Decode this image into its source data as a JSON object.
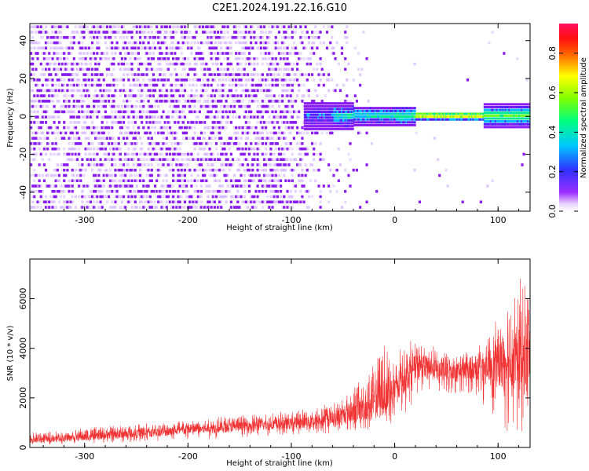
{
  "title": "C2E1.2024.191.22.16.G10",
  "colors": {
    "snr_trace": "#f03232",
    "spectrum_low": "#8a1cf0",
    "spectrum_ridge": "#ff2020"
  },
  "chart_data": [
    {
      "type": "heatmap",
      "xlabel": "Height of straight line (km)",
      "ylabel": "Frequency (Hz)",
      "xlim": [
        -353,
        131
      ],
      "ylim": [
        -50,
        49
      ],
      "xticks": [
        -300,
        -200,
        -100,
        0,
        100
      ],
      "yticks": [
        -40,
        -20,
        0,
        20,
        40
      ],
      "colorbar": {
        "label": "Normalized spectral amplitude",
        "range": [
          0,
          0.95
        ],
        "ticks": [
          "0.0",
          "0.2",
          "0.4",
          "0.6",
          "0.8"
        ],
        "colormap": "rainbow (purple → blue → cyan → green → yellow → red → magenta)"
      },
      "description_values": {
        "noise_region_x": [
          -353,
          -50
        ],
        "signal_ridge_frequency": 0,
        "signal_region_x": [
          -85,
          131
        ],
        "peak_amplitude_region_x": [
          20,
          110
        ]
      },
      "grid": false
    },
    {
      "type": "line",
      "xlabel": "Height of straight line (km)",
      "ylabel": "SNR (10 * v/v)",
      "xlim": [
        -353,
        131
      ],
      "ylim": [
        0,
        7600
      ],
      "xticks": [
        -300,
        -200,
        -100,
        0,
        100
      ],
      "yticks": [
        0,
        2000,
        4000,
        6000
      ],
      "series": [
        {
          "x": [
            -350,
            -325,
            -300,
            -275,
            -250,
            -225,
            -200,
            -175,
            -150,
            -125,
            -100,
            -75,
            -50,
            -25,
            -10,
            0,
            10,
            25,
            50,
            75,
            100,
            115,
            125,
            131
          ],
          "y": [
            300,
            350,
            420,
            480,
            550,
            620,
            700,
            780,
            830,
            900,
            950,
            1050,
            1250,
            1600,
            2000,
            2300,
            2900,
            3300,
            3000,
            3100,
            3300,
            3500,
            3200,
            3600
          ],
          "envelope_max": [
            600,
            700,
            800,
            900,
            950,
            1050,
            1150,
            1250,
            1300,
            1400,
            1500,
            1650,
            2100,
            3000,
            4200,
            3600,
            4300,
            4400,
            3800,
            4000,
            5200,
            7000,
            6800,
            7300
          ],
          "envelope_min": [
            100,
            120,
            150,
            180,
            220,
            250,
            300,
            350,
            400,
            450,
            480,
            500,
            600,
            700,
            900,
            800,
            1300,
            2300,
            2100,
            2200,
            1000,
            300,
            600,
            1200
          ]
        }
      ],
      "grid": false
    }
  ]
}
